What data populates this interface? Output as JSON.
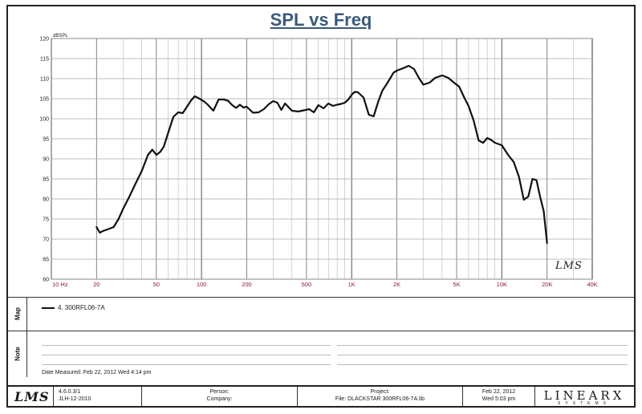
{
  "chart_data": {
    "type": "line",
    "title": "SPL vs Freq",
    "ylabel": "dBSPL",
    "xscale": "log",
    "xlim": [
      10,
      40000
    ],
    "ylim": [
      60,
      120
    ],
    "x_tick_labels": [
      "10 Hz",
      "20",
      "50",
      "100",
      "200",
      "500",
      "1K",
      "2K",
      "5K",
      "10K",
      "20K",
      "40K"
    ],
    "x_tick_values": [
      10,
      20,
      50,
      100,
      200,
      500,
      1000,
      2000,
      5000,
      10000,
      20000,
      40000
    ],
    "y_ticks": [
      60,
      65,
      70,
      75,
      80,
      85,
      90,
      95,
      100,
      105,
      110,
      115,
      120
    ],
    "grid": true,
    "series": [
      {
        "name": "4. 300RFL06-7A",
        "color": "#111111",
        "x": [
          20,
          21,
          22,
          24,
          26,
          28,
          30,
          33,
          36,
          40,
          44,
          47,
          50,
          53,
          56,
          60,
          65,
          70,
          75,
          80,
          85,
          90,
          95,
          100,
          105,
          110,
          120,
          130,
          140,
          150,
          160,
          170,
          180,
          190,
          200,
          220,
          240,
          260,
          280,
          300,
          320,
          340,
          360,
          400,
          440,
          480,
          520,
          560,
          600,
          650,
          700,
          750,
          800,
          850,
          900,
          950,
          1000,
          1050,
          1100,
          1200,
          1300,
          1400,
          1500,
          1600,
          1700,
          1800,
          1900,
          2000,
          2200,
          2400,
          2600,
          2800,
          3000,
          3300,
          3600,
          4000,
          4400,
          4800,
          5200,
          5600,
          6000,
          6500,
          7000,
          7500,
          8000,
          8500,
          9000,
          10000,
          11000,
          12000,
          13000,
          14000,
          15000,
          16000,
          17000,
          18000,
          19000,
          20000
        ],
        "y": [
          73,
          71.6,
          72,
          72.5,
          73,
          75,
          77.5,
          80.5,
          83.5,
          87,
          91,
          92.3,
          91,
          91.7,
          93,
          96.5,
          100.5,
          101.6,
          101.4,
          103,
          104.5,
          105.6,
          105.2,
          104.7,
          104.2,
          103.5,
          102,
          104.8,
          104.8,
          104.5,
          103.4,
          102.7,
          103.5,
          102.8,
          103,
          101.5,
          101.6,
          102.4,
          103.6,
          104.4,
          104,
          102.2,
          103.8,
          102,
          101.8,
          102.1,
          102.4,
          101.6,
          103.4,
          102.6,
          103.8,
          103.2,
          103.5,
          103.7,
          104,
          104.8,
          106,
          106.7,
          106.6,
          105.3,
          101,
          100.6,
          104.2,
          107,
          108.5,
          110,
          111.5,
          112,
          112.6,
          113.2,
          112.4,
          110.2,
          108.5,
          109,
          110.2,
          110.8,
          110.2,
          109,
          108,
          105.4,
          103.2,
          99.5,
          94.6,
          94,
          95.2,
          94.7,
          94,
          93.4,
          91,
          89.2,
          85.5,
          79.8,
          80.6,
          85,
          84.7,
          80.5,
          77,
          69
        ]
      }
    ]
  },
  "graph_logo": "LMS",
  "map_panel": {
    "label": "Map",
    "legend_entry": "4.  300RFL06-7A"
  },
  "note_panel": {
    "label": "Note",
    "date_measured": "Date Measured: Feb 22, 2012  Wed  4:14 pm"
  },
  "footer": {
    "logo": "LMS",
    "version": "4.6.0.3/1",
    "version_date": "JLH-12-2010",
    "person_label": "Person:",
    "company_label": "Company:",
    "project_label": "Project:",
    "file_label": "File: DLACKSTAR 300RFL06-7A.lib",
    "date": "Feb 22, 2012",
    "time": "Wed  5:03 pm",
    "brand": "LINEARX",
    "brand_sub": "SYSTEMS"
  }
}
